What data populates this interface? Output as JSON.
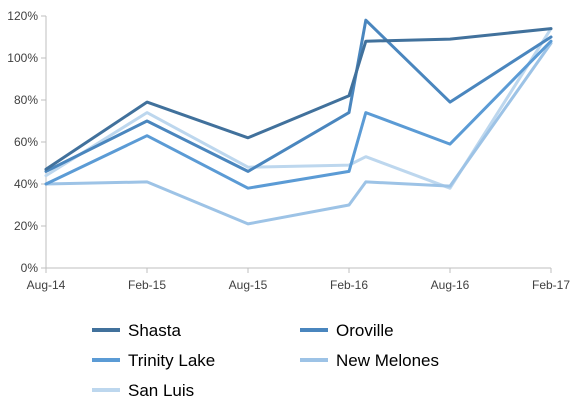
{
  "chart_data": {
    "type": "line",
    "title": "",
    "xlabel": "",
    "ylabel": "",
    "x": [
      "Aug-14",
      "Feb-15",
      "Aug-15",
      "Feb-16",
      "Mar-16",
      "Aug-16",
      "Feb-17"
    ],
    "x_ticks": [
      "Aug-14",
      "Feb-15",
      "Aug-15",
      "Feb-16",
      "Aug-16",
      "Feb-17"
    ],
    "y_ticks": [
      "0%",
      "20%",
      "40%",
      "60%",
      "80%",
      "100%",
      "120%"
    ],
    "ylim": [
      0,
      120
    ],
    "y_unit": "%",
    "grid": false,
    "legend_position": "bottom",
    "series": [
      {
        "name": "Shasta",
        "color": "#41719c",
        "values": [
          47,
          79,
          62,
          82,
          108,
          109,
          114
        ]
      },
      {
        "name": "Oroville",
        "color": "#4a86be",
        "values": [
          46,
          70,
          46,
          74,
          118,
          79,
          110
        ]
      },
      {
        "name": "Trinity Lake",
        "color": "#5b9bd5",
        "values": [
          40,
          63,
          38,
          46,
          74,
          59,
          108
        ]
      },
      {
        "name": "New Melones",
        "color": "#9dc3e6",
        "values": [
          40,
          41,
          21,
          30,
          41,
          39,
          107
        ]
      },
      {
        "name": "San Luis",
        "color": "#bdd7ee",
        "values": [
          44,
          74,
          48,
          49,
          53,
          38,
          114
        ]
      }
    ]
  }
}
